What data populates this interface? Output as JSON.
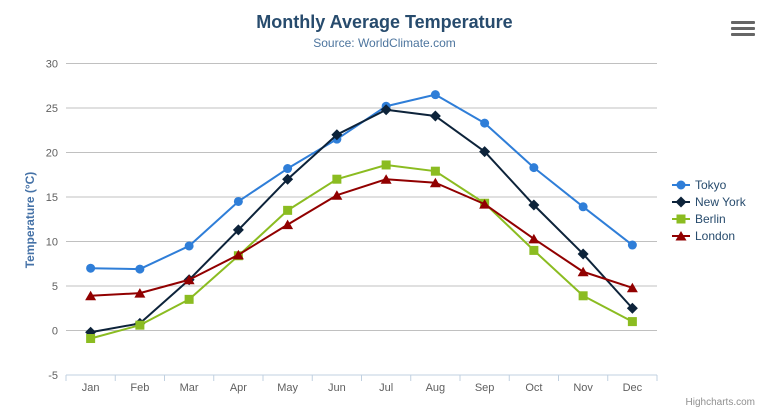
{
  "chart_data": {
    "type": "line",
    "title": "Monthly Average Temperature",
    "subtitle": "Source: WorldClimate.com",
    "xlabel": "",
    "ylabel": "Temperature (°C)",
    "categories": [
      "Jan",
      "Feb",
      "Mar",
      "Apr",
      "May",
      "Jun",
      "Jul",
      "Aug",
      "Sep",
      "Oct",
      "Nov",
      "Dec"
    ],
    "ylim": [
      -5,
      30
    ],
    "yticks": [
      -5,
      0,
      5,
      10,
      15,
      20,
      25,
      30
    ],
    "grid": true,
    "legend_position": "right-middle",
    "series": [
      {
        "name": "Tokyo",
        "color": "#2f7ed8",
        "marker": "circle",
        "values": [
          7.0,
          6.9,
          9.5,
          14.5,
          18.2,
          21.5,
          25.2,
          26.5,
          23.3,
          18.3,
          13.9,
          9.6
        ]
      },
      {
        "name": "New York",
        "color": "#0d233a",
        "marker": "diamond",
        "values": [
          -0.2,
          0.8,
          5.7,
          11.3,
          17.0,
          22.0,
          24.8,
          24.1,
          20.1,
          14.1,
          8.6,
          2.5
        ]
      },
      {
        "name": "Berlin",
        "color": "#8bbc21",
        "marker": "square",
        "values": [
          -0.9,
          0.6,
          3.5,
          8.4,
          13.5,
          17.0,
          18.6,
          17.9,
          14.3,
          9.0,
          3.9,
          1.0
        ]
      },
      {
        "name": "London",
        "color": "#910000",
        "marker": "triangle",
        "values": [
          3.9,
          4.2,
          5.7,
          8.5,
          11.9,
          15.2,
          17.0,
          16.6,
          14.2,
          10.3,
          6.6,
          4.8
        ]
      }
    ]
  },
  "export_menu": {
    "icon": "hamburger-icon"
  },
  "credits": {
    "label": "Highcharts.com"
  },
  "colors": {
    "title": "#274b6d",
    "subtitle": "#4d759e",
    "axis_title": "#4572a7",
    "axis_labels": "#606060",
    "legend_text": "#274b6d",
    "grid_line": "#c0c0c0",
    "axis_line": "#c0d0e0",
    "credits_text": "#909090",
    "menu_icon": "#666666",
    "background": "#ffffff"
  }
}
